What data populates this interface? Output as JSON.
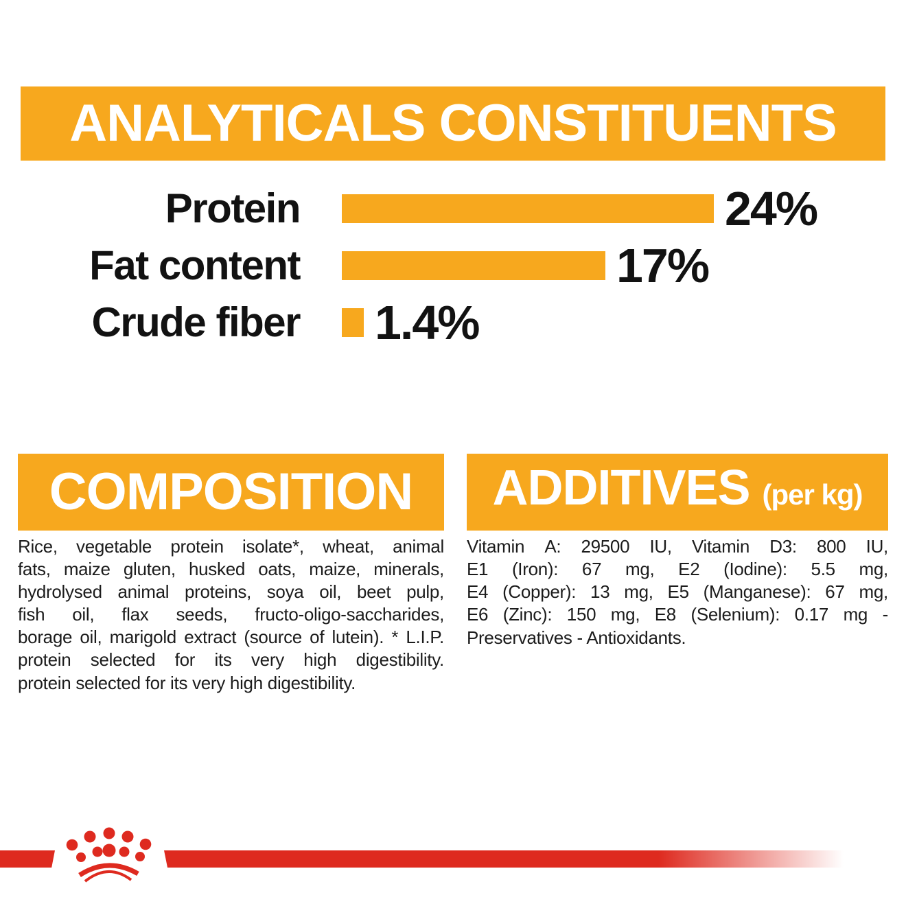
{
  "page": {
    "background": "#ffffff",
    "brand_orange": "#F7A81E",
    "brand_red": "#DE2A1F",
    "text_color": "#1c1c1c"
  },
  "header": {
    "title": "ANALYTICALS CONSTITUENTS"
  },
  "chart_data": {
    "type": "bar",
    "orientation": "horizontal",
    "title": "ANALYTICALS CONSTITUENTS",
    "categories": [
      "Protein",
      "Fat content",
      "Crude fiber"
    ],
    "values": [
      24,
      17,
      1.4
    ],
    "value_labels": [
      "24%",
      "17%",
      "1.4%"
    ],
    "bar_color": "#F7A81E",
    "xlabel": "",
    "ylabel": "",
    "xlim": [
      0,
      30
    ],
    "grid": false,
    "legend": false
  },
  "composition": {
    "title": "COMPOSITION",
    "lines": [
      "Rice, vegetable protein isolate*, wheat, animal",
      "fats, maize gluten, husked oats, maize, minerals,",
      "hydrolysed animal proteins, soya oil, beet pulp,",
      "fish oil, flax seeds, fructo-oligo-saccharides,",
      "borage oil, marigold extract (source of lutein). * L.I.P.",
      "protein selected for its very high digestibility.",
      "protein selected for its very high digestibility."
    ]
  },
  "additives": {
    "title": "ADDITIVES",
    "title_suffix": "(per kg)",
    "lines": [
      "Vitamin A: 29500 IU, Vitamin D3: 800 IU,",
      "E1 (Iron): 67 mg, E2 (Iodine): 5.5 mg,",
      "E4 (Copper): 13 mg, E5 (Manganese): 67 mg,",
      "E6 (Zinc): 150 mg, E8 (Selenium): 0.17 mg -",
      "Preservatives - Antioxidants."
    ]
  },
  "footer": {
    "logo": "royal-canin-crown"
  }
}
